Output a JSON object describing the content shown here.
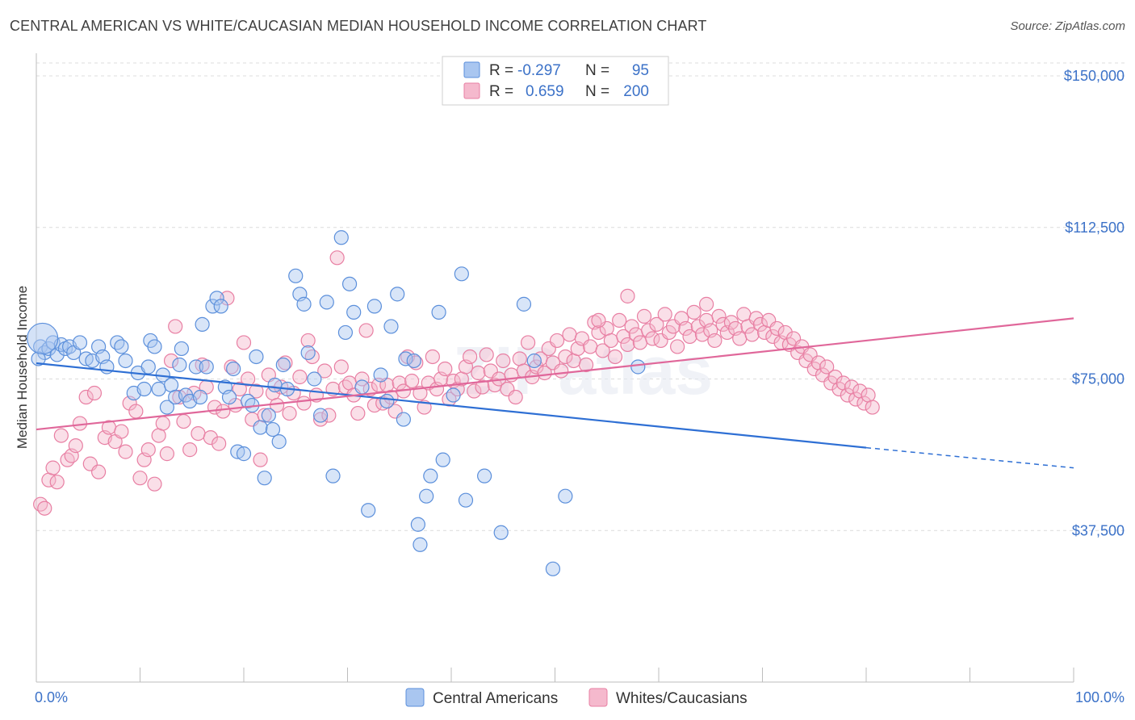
{
  "title": "CENTRAL AMERICAN VS WHITE/CAUCASIAN MEDIAN HOUSEHOLD INCOME CORRELATION CHART",
  "source": "Source: ZipAtlas.com",
  "watermark": "ZIPatlas",
  "colors": {
    "blue": "#5b8fdb",
    "blue_fill": "#a9c6f0",
    "blue_line": "#2e6fd4",
    "pink": "#e87fa3",
    "pink_fill": "#f5b9cd",
    "pink_line": "#e0679a",
    "grid": "#dcdcdc",
    "axis_text": "#3c72c8"
  },
  "legend": {
    "r_label": "R =",
    "n_label": "N =",
    "rows": [
      {
        "r": "-0.297",
        "n": "95",
        "color": "blue"
      },
      {
        "r": "0.659",
        "n": "200",
        "color": "pink"
      }
    ]
  },
  "chart_data": {
    "type": "scatter",
    "xlabel": "",
    "ylabel": "Median Household Income",
    "xlim": [
      0,
      100
    ],
    "ylim": [
      0,
      150000
    ],
    "x_tick_labels": [
      "0.0%",
      "100.0%"
    ],
    "y_ticks": [
      37500,
      75000,
      112500,
      150000
    ],
    "y_tick_labels": [
      "$37,500",
      "$75,000",
      "$112,500",
      "$150,000"
    ],
    "grid": true,
    "legend_position": "top-center",
    "series": [
      {
        "name": "Central Americans",
        "color": "blue",
        "trend": {
          "x": [
            0,
            80,
            100
          ],
          "y": [
            78900,
            58000,
            53000
          ],
          "solid_until": 80
        },
        "points": [
          [
            0.4,
            83000
          ],
          [
            0.8,
            81500
          ],
          [
            1.2,
            82500
          ],
          [
            1.6,
            84000
          ],
          [
            2.0,
            81000
          ],
          [
            2.4,
            83500
          ],
          [
            2.8,
            82500
          ],
          [
            3.2,
            83000
          ],
          [
            3.6,
            81500
          ],
          [
            4.2,
            84000
          ],
          [
            4.8,
            80000
          ],
          [
            5.4,
            79500
          ],
          [
            6.0,
            83000
          ],
          [
            6.4,
            80500
          ],
          [
            6.8,
            78000
          ],
          [
            7.8,
            84000
          ],
          [
            8.2,
            83000
          ],
          [
            8.6,
            79500
          ],
          [
            9.4,
            71500
          ],
          [
            9.8,
            76500
          ],
          [
            10.4,
            72500
          ],
          [
            10.8,
            78000
          ],
          [
            11.0,
            84500
          ],
          [
            11.4,
            83000
          ],
          [
            11.8,
            72500
          ],
          [
            12.2,
            76000
          ],
          [
            12.6,
            68000
          ],
          [
            13.0,
            73500
          ],
          [
            13.4,
            70500
          ],
          [
            13.8,
            78500
          ],
          [
            14.0,
            82500
          ],
          [
            14.4,
            71000
          ],
          [
            14.8,
            69500
          ],
          [
            15.4,
            78000
          ],
          [
            15.8,
            70500
          ],
          [
            16.0,
            88500
          ],
          [
            16.4,
            78000
          ],
          [
            17.0,
            93000
          ],
          [
            17.4,
            95000
          ],
          [
            17.8,
            93000
          ],
          [
            18.2,
            73000
          ],
          [
            18.6,
            70500
          ],
          [
            19.0,
            77500
          ],
          [
            19.4,
            57000
          ],
          [
            20.0,
            56500
          ],
          [
            20.4,
            69500
          ],
          [
            20.8,
            68500
          ],
          [
            21.2,
            80500
          ],
          [
            21.6,
            63000
          ],
          [
            22.0,
            50500
          ],
          [
            22.4,
            66000
          ],
          [
            22.8,
            62500
          ],
          [
            23.4,
            59500
          ],
          [
            23.8,
            78500
          ],
          [
            24.2,
            72500
          ],
          [
            25.0,
            100500
          ],
          [
            25.4,
            96000
          ],
          [
            25.8,
            93500
          ],
          [
            26.2,
            81500
          ],
          [
            26.8,
            75000
          ],
          [
            27.4,
            66000
          ],
          [
            28.0,
            94000
          ],
          [
            28.6,
            51000
          ],
          [
            29.4,
            110000
          ],
          [
            29.8,
            86500
          ],
          [
            30.2,
            98500
          ],
          [
            30.6,
            91500
          ],
          [
            31.4,
            73000
          ],
          [
            32.0,
            42500
          ],
          [
            32.6,
            93000
          ],
          [
            33.2,
            76000
          ],
          [
            33.8,
            69500
          ],
          [
            34.2,
            88000
          ],
          [
            34.8,
            96000
          ],
          [
            35.4,
            65000
          ],
          [
            35.6,
            80000
          ],
          [
            36.4,
            79500
          ],
          [
            36.8,
            39000
          ],
          [
            37.0,
            34000
          ],
          [
            37.6,
            46000
          ],
          [
            38.0,
            51000
          ],
          [
            38.8,
            91500
          ],
          [
            39.2,
            55000
          ],
          [
            40.2,
            71000
          ],
          [
            41.0,
            101000
          ],
          [
            41.4,
            45000
          ],
          [
            43.2,
            51000
          ],
          [
            44.8,
            37000
          ],
          [
            47.0,
            93500
          ],
          [
            48.0,
            79500
          ],
          [
            49.8,
            28000
          ],
          [
            51.0,
            46000
          ],
          [
            58.0,
            78000
          ],
          [
            0.2,
            80000
          ],
          [
            23.0,
            73500
          ]
        ],
        "sizes_note": "first point large",
        "large": [
          [
            0.6,
            85000
          ]
        ]
      },
      {
        "name": "Whites/Caucasians",
        "color": "pink",
        "trend": {
          "x": [
            0,
            100
          ],
          "y": [
            62500,
            90000
          ]
        },
        "points": [
          [
            0.4,
            44000
          ],
          [
            0.8,
            43000
          ],
          [
            1.2,
            50000
          ],
          [
            1.6,
            53000
          ],
          [
            2.0,
            49500
          ],
          [
            2.4,
            61000
          ],
          [
            3.0,
            55000
          ],
          [
            3.4,
            56000
          ],
          [
            3.8,
            58500
          ],
          [
            4.2,
            64000
          ],
          [
            4.8,
            70500
          ],
          [
            5.2,
            54000
          ],
          [
            5.6,
            71500
          ],
          [
            6.0,
            52000
          ],
          [
            6.6,
            60500
          ],
          [
            7.0,
            63000
          ],
          [
            7.6,
            59500
          ],
          [
            8.2,
            62000
          ],
          [
            8.6,
            57000
          ],
          [
            9.0,
            69000
          ],
          [
            9.6,
            67000
          ],
          [
            10.0,
            50500
          ],
          [
            10.4,
            55000
          ],
          [
            10.8,
            57500
          ],
          [
            11.4,
            49000
          ],
          [
            11.8,
            61000
          ],
          [
            12.2,
            64000
          ],
          [
            12.6,
            56500
          ],
          [
            13.0,
            79500
          ],
          [
            13.4,
            88000
          ],
          [
            13.8,
            70500
          ],
          [
            14.2,
            64500
          ],
          [
            14.8,
            57500
          ],
          [
            15.2,
            71500
          ],
          [
            15.6,
            61500
          ],
          [
            16.0,
            78500
          ],
          [
            16.4,
            73000
          ],
          [
            16.8,
            60500
          ],
          [
            17.2,
            68000
          ],
          [
            17.6,
            59000
          ],
          [
            18.0,
            67000
          ],
          [
            18.4,
            95000
          ],
          [
            18.8,
            78000
          ],
          [
            19.2,
            68500
          ],
          [
            19.6,
            72500
          ],
          [
            20.0,
            84000
          ],
          [
            20.4,
            75000
          ],
          [
            20.8,
            65000
          ],
          [
            21.2,
            72000
          ],
          [
            21.6,
            55000
          ],
          [
            22.0,
            66000
          ],
          [
            22.4,
            76000
          ],
          [
            22.8,
            71500
          ],
          [
            23.2,
            68500
          ],
          [
            23.6,
            73000
          ],
          [
            24.0,
            79000
          ],
          [
            24.4,
            66500
          ],
          [
            24.8,
            71500
          ],
          [
            25.4,
            75500
          ],
          [
            25.8,
            69000
          ],
          [
            26.2,
            84500
          ],
          [
            26.6,
            80500
          ],
          [
            27.0,
            71000
          ],
          [
            27.4,
            65000
          ],
          [
            27.8,
            77000
          ],
          [
            28.2,
            66000
          ],
          [
            28.6,
            72500
          ],
          [
            29.0,
            105000
          ],
          [
            29.4,
            78000
          ],
          [
            29.8,
            73000
          ],
          [
            30.2,
            74000
          ],
          [
            30.6,
            71000
          ],
          [
            31.0,
            66500
          ],
          [
            31.4,
            75000
          ],
          [
            31.8,
            87000
          ],
          [
            32.2,
            72500
          ],
          [
            32.6,
            68500
          ],
          [
            33.0,
            73500
          ],
          [
            33.4,
            69000
          ],
          [
            33.8,
            73500
          ],
          [
            34.2,
            70500
          ],
          [
            34.6,
            67000
          ],
          [
            35.0,
            74000
          ],
          [
            35.4,
            72000
          ],
          [
            35.8,
            80500
          ],
          [
            36.2,
            74500
          ],
          [
            36.6,
            79000
          ],
          [
            37.0,
            71500
          ],
          [
            37.4,
            68000
          ],
          [
            37.8,
            74000
          ],
          [
            38.2,
            80500
          ],
          [
            38.6,
            72500
          ],
          [
            39.0,
            75000
          ],
          [
            39.4,
            77500
          ],
          [
            39.8,
            70000
          ],
          [
            40.2,
            74500
          ],
          [
            40.6,
            72500
          ],
          [
            41.0,
            75000
          ],
          [
            41.4,
            78000
          ],
          [
            41.8,
            80500
          ],
          [
            42.2,
            72000
          ],
          [
            42.6,
            76500
          ],
          [
            43.0,
            73000
          ],
          [
            43.4,
            81000
          ],
          [
            43.8,
            77000
          ],
          [
            44.2,
            73500
          ],
          [
            44.6,
            75000
          ],
          [
            45.0,
            79500
          ],
          [
            45.4,
            72500
          ],
          [
            45.8,
            76000
          ],
          [
            46.2,
            70500
          ],
          [
            46.6,
            80000
          ],
          [
            47.0,
            77000
          ],
          [
            47.4,
            84000
          ],
          [
            47.8,
            75500
          ],
          [
            48.2,
            78000
          ],
          [
            48.6,
            80000
          ],
          [
            49.0,
            76500
          ],
          [
            49.4,
            82500
          ],
          [
            49.8,
            79000
          ],
          [
            50.2,
            84500
          ],
          [
            50.6,
            77000
          ],
          [
            51.0,
            80500
          ],
          [
            51.4,
            86000
          ],
          [
            51.8,
            79500
          ],
          [
            52.2,
            82500
          ],
          [
            52.6,
            85000
          ],
          [
            53.0,
            78500
          ],
          [
            53.4,
            83000
          ],
          [
            53.8,
            89000
          ],
          [
            54.2,
            86500
          ],
          [
            54.6,
            82000
          ],
          [
            55.0,
            87500
          ],
          [
            55.4,
            84500
          ],
          [
            55.8,
            80500
          ],
          [
            56.2,
            89500
          ],
          [
            56.6,
            85500
          ],
          [
            57.0,
            83500
          ],
          [
            57.4,
            88000
          ],
          [
            57.8,
            86000
          ],
          [
            58.2,
            84000
          ],
          [
            58.6,
            90500
          ],
          [
            59.0,
            87000
          ],
          [
            59.4,
            85000
          ],
          [
            59.8,
            88500
          ],
          [
            60.2,
            84500
          ],
          [
            60.6,
            91000
          ],
          [
            61.0,
            86500
          ],
          [
            61.4,
            88000
          ],
          [
            61.8,
            83000
          ],
          [
            62.2,
            90000
          ],
          [
            62.6,
            87500
          ],
          [
            63.0,
            85500
          ],
          [
            63.4,
            91500
          ],
          [
            63.8,
            88000
          ],
          [
            64.2,
            86000
          ],
          [
            64.6,
            89500
          ],
          [
            65.0,
            87000
          ],
          [
            65.4,
            84500
          ],
          [
            65.8,
            90500
          ],
          [
            66.2,
            88500
          ],
          [
            66.6,
            86500
          ],
          [
            67.0,
            89000
          ],
          [
            67.4,
            87500
          ],
          [
            67.8,
            85000
          ],
          [
            68.2,
            91000
          ],
          [
            68.6,
            88000
          ],
          [
            69.0,
            86000
          ],
          [
            69.4,
            90000
          ],
          [
            69.8,
            88500
          ],
          [
            70.2,
            86500
          ],
          [
            70.6,
            89500
          ],
          [
            71.0,
            85500
          ],
          [
            71.4,
            87500
          ],
          [
            71.8,
            84000
          ],
          [
            72.2,
            86500
          ],
          [
            72.6,
            83500
          ],
          [
            73.0,
            85000
          ],
          [
            73.4,
            81500
          ],
          [
            73.8,
            83000
          ],
          [
            74.2,
            79500
          ],
          [
            74.6,
            81000
          ],
          [
            75.0,
            77500
          ],
          [
            75.4,
            79000
          ],
          [
            75.8,
            76000
          ],
          [
            76.2,
            78000
          ],
          [
            76.6,
            74000
          ],
          [
            77.0,
            75500
          ],
          [
            77.4,
            72500
          ],
          [
            77.8,
            74000
          ],
          [
            78.2,
            71000
          ],
          [
            78.6,
            73000
          ],
          [
            79.0,
            70000
          ],
          [
            79.4,
            72000
          ],
          [
            79.8,
            69000
          ],
          [
            80.2,
            71000
          ],
          [
            80.6,
            68000
          ],
          [
            57.0,
            95500
          ],
          [
            64.6,
            93500
          ],
          [
            54.2,
            89500
          ]
        ]
      }
    ]
  },
  "bottom_legend": [
    {
      "label": "Central Americans",
      "color": "blue"
    },
    {
      "label": "Whites/Caucasians",
      "color": "pink"
    }
  ]
}
